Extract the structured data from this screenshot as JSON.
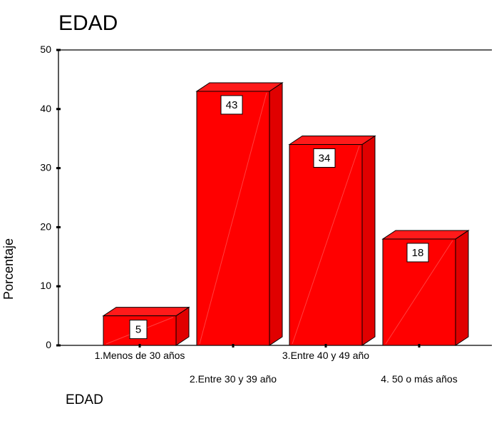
{
  "chart_data": {
    "type": "bar",
    "title": "EDAD",
    "xlabel": "EDAD",
    "ylabel": "Porcentaje",
    "categories": [
      "1.Menos de 30 años",
      "2.Entre 30 y 39 año",
      "3.Entre 40 y 49 año",
      "4. 50 o más años"
    ],
    "values": [
      5,
      43,
      34,
      18
    ],
    "data_labels": [
      "5",
      "43",
      "34",
      "18"
    ],
    "ylim": [
      0,
      50
    ],
    "yticks": [
      0,
      10,
      20,
      30,
      40,
      50
    ],
    "grid": false,
    "bar_style": "3d",
    "colors": {
      "bar": "#ff0000",
      "bar_side": "#e00000",
      "bar_top": "#ff1a1a",
      "axis": "#000000"
    }
  }
}
